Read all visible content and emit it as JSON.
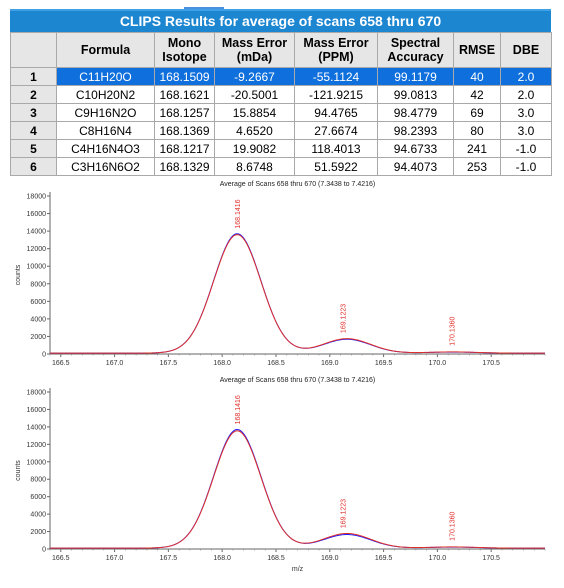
{
  "table": {
    "title": "CLIPS Results for average of scans 658 thru 670",
    "headers": [
      {
        "line1": "",
        "line2": ""
      },
      {
        "line1": "Formula",
        "line2": ""
      },
      {
        "line1": "Mono",
        "line2": "Isotope"
      },
      {
        "line1": "Mass Error",
        "line2": "(mDa)"
      },
      {
        "line1": "Mass Error",
        "line2": "(PPM)"
      },
      {
        "line1": "Spectral",
        "line2": "Accuracy"
      },
      {
        "line1": "RMSE",
        "line2": ""
      },
      {
        "line1": "DBE",
        "line2": ""
      }
    ],
    "rows": [
      {
        "idx": "1",
        "formula": "C11H20O",
        "mono": "168.1509",
        "err_mda": "-9.2667",
        "err_ppm": "-55.1124",
        "accuracy": "99.1179",
        "rmse": "40",
        "dbe": "2.0",
        "selected": true
      },
      {
        "idx": "2",
        "formula": "C10H20N2",
        "mono": "168.1621",
        "err_mda": "-20.5001",
        "err_ppm": "-121.9215",
        "accuracy": "99.0813",
        "rmse": "42",
        "dbe": "2.0",
        "selected": false
      },
      {
        "idx": "3",
        "formula": "C9H16N2O",
        "mono": "168.1257",
        "err_mda": "15.8854",
        "err_ppm": "94.4765",
        "accuracy": "98.4779",
        "rmse": "69",
        "dbe": "3.0",
        "selected": false
      },
      {
        "idx": "4",
        "formula": "C8H16N4",
        "mono": "168.1369",
        "err_mda": "4.6520",
        "err_ppm": "27.6674",
        "accuracy": "98.2393",
        "rmse": "80",
        "dbe": "3.0",
        "selected": false
      },
      {
        "idx": "5",
        "formula": "C4H16N4O3",
        "mono": "168.1217",
        "err_mda": "19.9082",
        "err_ppm": "118.4013",
        "accuracy": "94.6733",
        "rmse": "241",
        "dbe": "-1.0",
        "selected": false
      },
      {
        "idx": "6",
        "formula": "C3H16N6O2",
        "mono": "168.1329",
        "err_mda": "8.6748",
        "err_ppm": "51.5922",
        "accuracy": "94.4073",
        "rmse": "253",
        "dbe": "-1.0",
        "selected": false
      }
    ]
  },
  "chart_data": [
    {
      "type": "line",
      "title": "Average of Scans 658 thru 670 (7.3438 to 7.4216)",
      "xlabel": "",
      "ylabel": "counts",
      "xlim": [
        166.4,
        171.0
      ],
      "ylim": [
        0,
        18000
      ],
      "x_ticks": [
        "166.5",
        "167.0",
        "167.5",
        "168.0",
        "168.5",
        "169.0",
        "169.5",
        "170.0",
        "170.5"
      ],
      "y_ticks": [
        "0",
        "2000",
        "4000",
        "6000",
        "8000",
        "10000",
        "12000",
        "14000",
        "16000",
        "18000"
      ],
      "peak_labels": [
        {
          "x": 168.1416,
          "y": 13600,
          "label": "168.1416"
        },
        {
          "x": 169.1223,
          "y": 1700,
          "label": "169.1223"
        },
        {
          "x": 170.136,
          "y": 250,
          "label": "170.1360"
        }
      ],
      "series": [
        {
          "color": "#1a1aff",
          "peaks": [
            {
              "center": 168.14,
              "height": 13600,
              "sigma": 0.22
            },
            {
              "center": 169.16,
              "height": 1580,
              "sigma": 0.22
            },
            {
              "center": 170.14,
              "height": 120,
              "sigma": 0.22
            }
          ],
          "baseline": 100
        },
        {
          "color": "#e0302a",
          "peaks": [
            {
              "center": 168.14,
              "height": 13500,
              "sigma": 0.22
            },
            {
              "center": 169.16,
              "height": 1650,
              "sigma": 0.22
            },
            {
              "center": 170.14,
              "height": 140,
              "sigma": 0.22
            }
          ],
          "baseline": 100
        }
      ]
    },
    {
      "type": "line",
      "title": "Average of Scans 658 thru 670 (7.3438 to 7.4216)",
      "xlabel": "m/z",
      "ylabel": "counts",
      "xlim": [
        166.4,
        171.0
      ],
      "ylim": [
        0,
        18000
      ],
      "x_ticks": [
        "166.5",
        "167.0",
        "167.5",
        "168.0",
        "168.5",
        "169.0",
        "169.5",
        "170.0",
        "170.5"
      ],
      "y_ticks": [
        "0",
        "2000",
        "4000",
        "6000",
        "8000",
        "10000",
        "12000",
        "14000",
        "16000",
        "18000"
      ],
      "peak_labels": [
        {
          "x": 168.1416,
          "y": 13600,
          "label": "168.1416"
        },
        {
          "x": 169.1223,
          "y": 1700,
          "label": "169.1223"
        },
        {
          "x": 170.136,
          "y": 250,
          "label": "170.1360"
        }
      ],
      "series": [
        {
          "color": "#1a1aff",
          "peaks": [
            {
              "center": 168.14,
              "height": 13600,
              "sigma": 0.22
            },
            {
              "center": 169.16,
              "height": 1560,
              "sigma": 0.22
            },
            {
              "center": 170.14,
              "height": 120,
              "sigma": 0.22
            }
          ],
          "baseline": 100
        },
        {
          "color": "#e0302a",
          "peaks": [
            {
              "center": 168.14,
              "height": 13450,
              "sigma": 0.22
            },
            {
              "center": 169.16,
              "height": 1680,
              "sigma": 0.22
            },
            {
              "center": 170.14,
              "height": 140,
              "sigma": 0.22
            }
          ],
          "baseline": 100
        }
      ]
    }
  ]
}
